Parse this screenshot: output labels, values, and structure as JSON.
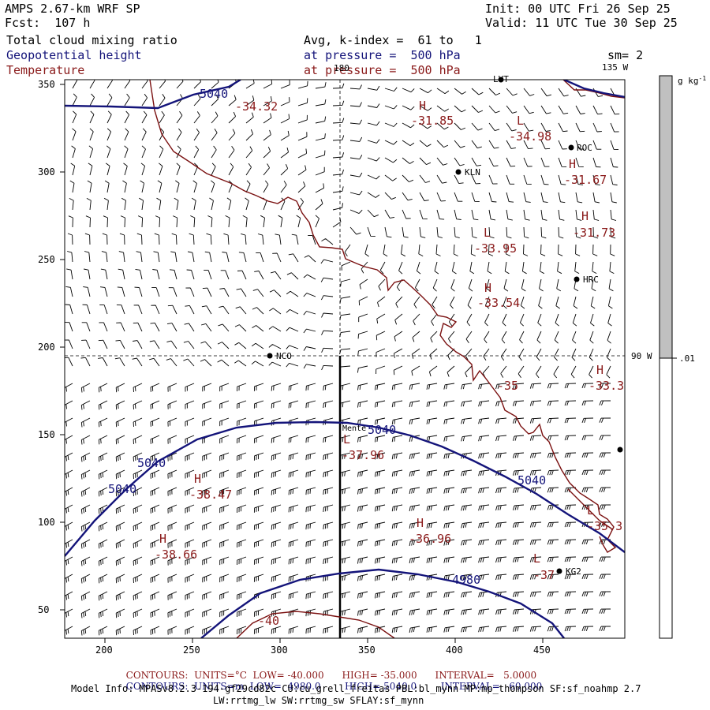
{
  "header": {
    "model": "AMPS 2.67-km WRF SP",
    "fcst": "Fcst:  107 h",
    "init": "Init: 00 UTC Fri 26 Sep 25",
    "valid": "Valid: 11 UTC Tue 30 Sep 25",
    "field1": "Total cloud mixing ratio",
    "field2": "Geopotential height",
    "field3": "Temperature",
    "avg": "Avg, k-index =  61 to   1",
    "pressure1": "at pressure =  500 hPa",
    "pressure2": "at pressure =  500 hPa",
    "sm": "sm= 2"
  },
  "map": {
    "y_ticks": [
      "350",
      "300",
      "250",
      "200",
      "150",
      "100",
      "50"
    ],
    "x_ticks": [
      "200",
      "250",
      "300",
      "350",
      "400",
      "450"
    ],
    "lon_label_180": "180",
    "lon_label_135w": "135 W",
    "lon_label_90w": "90 W",
    "stations": [
      "LVT",
      "ROC",
      "KLN",
      "HRC",
      "NCO",
      "Mente",
      "KG2"
    ],
    "height_labels": [
      "5040",
      "5040",
      "5040",
      "5040",
      "5040",
      "4980"
    ],
    "temp_labels": [
      "-34.32",
      "-31.85",
      "-34.98",
      "-31.67",
      "-31.73",
      "-33.95",
      "-33.54",
      "-33.3",
      "-35",
      "-37.96",
      "-38.47",
      "-38.66",
      "-36.96",
      "-37",
      "-35.3",
      "-40"
    ],
    "hl_markers": [
      "H",
      "L",
      "H",
      "H",
      "L",
      "H",
      "H",
      "L",
      "H",
      "H",
      "H",
      "L",
      "L"
    ]
  },
  "colorbar": {
    "unit": "g kg",
    "unit_sup": "-1",
    "level": ".01",
    "fill_color": "#c0c0c0"
  },
  "footer": {
    "line1_contours": "CONTOURS:",
    "line1_units": "UNITS=°C",
    "line1_low": "LOW= -40.000",
    "line1_high": "HIGH= -35.000",
    "line1_interval": "INTERVAL=",
    "line1_interval_val": "5.0000",
    "line2_contours": "CONTOURS:",
    "line2_units": "UNITS=m",
    "line2_low": "LOW=  4980.0",
    "line2_high": "HIGH= 5040.0",
    "line2_interval": "INTERVAL=",
    "line2_interval_val": "60.000",
    "model_info": "Model Info: MPASv8.2.3-194-gf29cd82c CU:cu_grell_freitas PBL:bl_mynn MP:mp_thompson SF:sf_noahmp 2.7",
    "model_info2": "LW:rrtmg_lw SW:rrtmg_sw SFLAY:sf_mynn"
  },
  "colors": {
    "height": "#14147a",
    "temperature": "#8a1a1a",
    "coast": "#7a1010"
  }
}
